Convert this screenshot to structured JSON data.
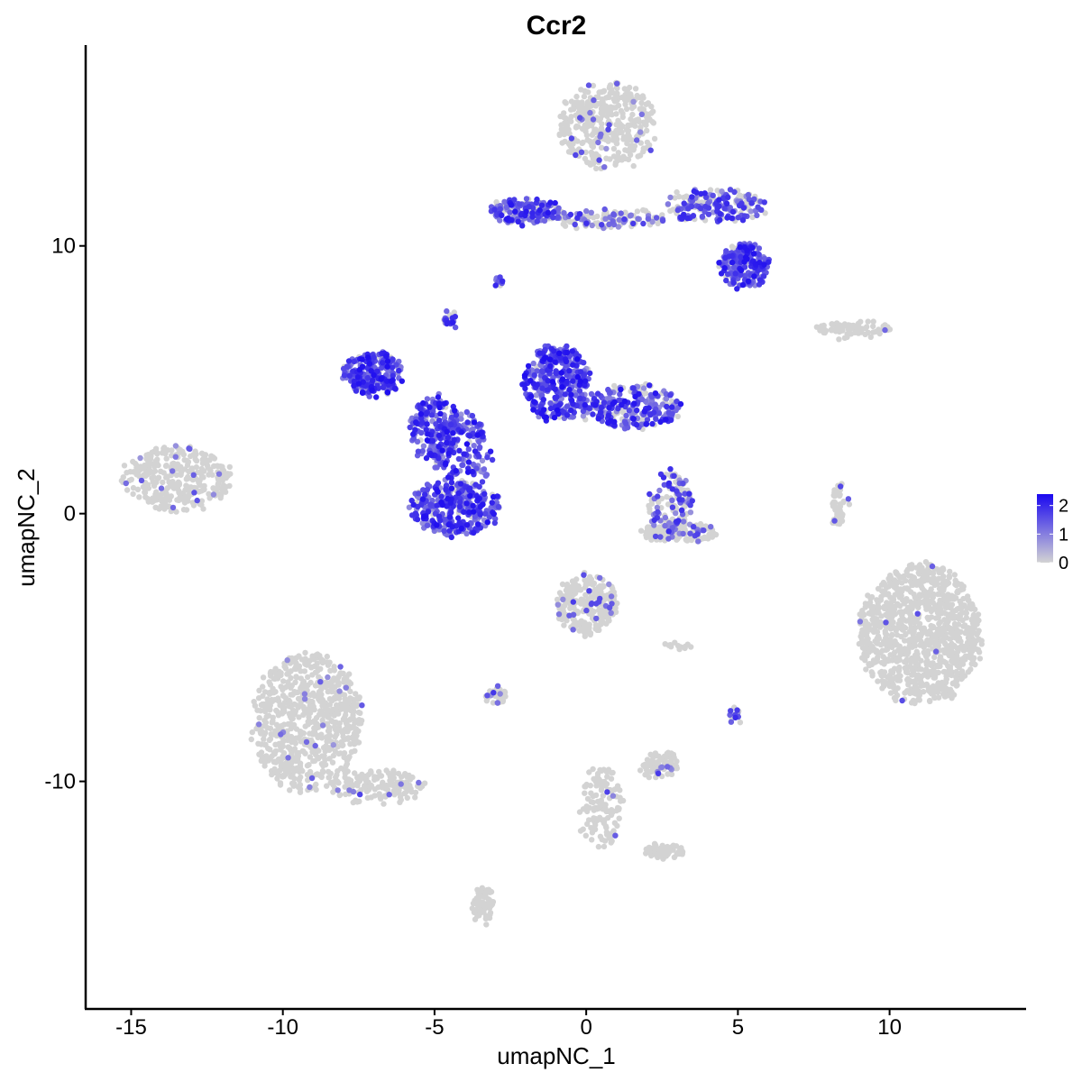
{
  "chart_data": {
    "type": "scatter",
    "title": "Ccr2",
    "xlabel": "umapNC_1",
    "ylabel": "umapNC_2",
    "xlim": [
      -16.5,
      14.5
    ],
    "ylim": [
      -18.5,
      17.5
    ],
    "x_ticks": [
      -15,
      -10,
      -5,
      0,
      5,
      10
    ],
    "x_tick_labels": [
      "-15",
      "-10",
      "-5",
      "0",
      "5",
      "10"
    ],
    "y_ticks": [
      -10,
      0,
      10
    ],
    "y_tick_labels": [
      "-10",
      "0",
      "10"
    ],
    "grid": false,
    "legend": {
      "placement": "right",
      "type": "colorbar",
      "low_color": "#d3d3d3",
      "high_color": "#1a08f0",
      "range": [
        0,
        2.4
      ],
      "ticks": [
        0,
        1,
        2
      ],
      "tick_labels": [
        "0",
        "1",
        "2"
      ]
    },
    "clusters": [
      {
        "cx": -13.5,
        "cy": 1.3,
        "rx": 1.8,
        "ry": 1.2,
        "n": 320,
        "expr": 0.06
      },
      {
        "cx": -9.2,
        "cy": -7.8,
        "rx": 1.8,
        "ry": 2.6,
        "n": 750,
        "expr": 0.02
      },
      {
        "cx": -6.9,
        "cy": -10.2,
        "rx": 1.6,
        "ry": 0.6,
        "n": 140,
        "expr": 0.01
      },
      {
        "cx": -3.4,
        "cy": -14.6,
        "rx": 0.35,
        "ry": 0.7,
        "n": 70,
        "expr": 0.0
      },
      {
        "cx": -7.0,
        "cy": 5.2,
        "rx": 1.0,
        "ry": 0.8,
        "n": 260,
        "expr": 0.92
      },
      {
        "cx": -5.0,
        "cy": 3.2,
        "rx": 0.8,
        "ry": 1.2,
        "n": 200,
        "expr": 0.9
      },
      {
        "cx": -4.3,
        "cy": 0.2,
        "rx": 1.5,
        "ry": 1.0,
        "n": 320,
        "expr": 0.88
      },
      {
        "cx": -4.1,
        "cy": 2.0,
        "rx": 0.9,
        "ry": 1.8,
        "n": 180,
        "expr": 0.92
      },
      {
        "cx": -1.0,
        "cy": 4.9,
        "rx": 1.1,
        "ry": 1.4,
        "n": 340,
        "expr": 0.95
      },
      {
        "cx": 1.5,
        "cy": 4.0,
        "rx": 1.7,
        "ry": 0.8,
        "n": 260,
        "expr": 0.8
      },
      {
        "cx": -4.5,
        "cy": 7.2,
        "rx": 0.2,
        "ry": 0.3,
        "n": 25,
        "expr": 0.7
      },
      {
        "cx": 0.7,
        "cy": 14.5,
        "rx": 1.6,
        "ry": 1.6,
        "n": 380,
        "expr": 0.04
      },
      {
        "cx": -2.0,
        "cy": 11.3,
        "rx": 1.2,
        "ry": 0.45,
        "n": 160,
        "expr": 0.8
      },
      {
        "cx": 0.7,
        "cy": 11.0,
        "rx": 2.0,
        "ry": 0.3,
        "n": 120,
        "expr": 0.4
      },
      {
        "cx": 4.2,
        "cy": 11.5,
        "rx": 1.7,
        "ry": 0.6,
        "n": 200,
        "expr": 0.55
      },
      {
        "cx": 5.2,
        "cy": 9.3,
        "rx": 0.8,
        "ry": 0.8,
        "n": 220,
        "expr": 0.85
      },
      {
        "cx": -2.9,
        "cy": 8.7,
        "rx": 0.15,
        "ry": 0.2,
        "n": 12,
        "expr": 0.6
      },
      {
        "cx": 2.8,
        "cy": 0.3,
        "rx": 0.7,
        "ry": 1.3,
        "n": 140,
        "expr": 0.45
      },
      {
        "cx": 3.1,
        "cy": -0.7,
        "rx": 1.3,
        "ry": 0.35,
        "n": 130,
        "expr": 0.15
      },
      {
        "cx": 8.7,
        "cy": 6.9,
        "rx": 1.4,
        "ry": 0.25,
        "n": 80,
        "expr": 0.02
      },
      {
        "cx": 8.3,
        "cy": 0.3,
        "rx": 0.25,
        "ry": 0.9,
        "n": 45,
        "expr": 0.08
      },
      {
        "cx": 11.0,
        "cy": -4.5,
        "rx": 2.0,
        "ry": 2.6,
        "n": 1000,
        "expr": 0.01
      },
      {
        "cx": 0.0,
        "cy": -3.4,
        "rx": 1.0,
        "ry": 1.1,
        "n": 240,
        "expr": 0.1
      },
      {
        "cx": -2.9,
        "cy": -6.8,
        "rx": 0.35,
        "ry": 0.3,
        "n": 40,
        "expr": 0.25
      },
      {
        "cx": 0.5,
        "cy": -11.0,
        "rx": 0.7,
        "ry": 1.5,
        "n": 130,
        "expr": 0.02
      },
      {
        "cx": 2.6,
        "cy": -12.6,
        "rx": 0.7,
        "ry": 0.2,
        "n": 60,
        "expr": 0.0
      },
      {
        "cx": 2.4,
        "cy": -9.4,
        "rx": 0.6,
        "ry": 0.5,
        "n": 80,
        "expr": 0.15
      },
      {
        "cx": 4.9,
        "cy": -7.5,
        "rx": 0.15,
        "ry": 0.2,
        "n": 14,
        "expr": 0.4
      },
      {
        "cx": 3.0,
        "cy": -4.9,
        "rx": 0.4,
        "ry": 0.1,
        "n": 12,
        "expr": 0.0
      }
    ]
  }
}
